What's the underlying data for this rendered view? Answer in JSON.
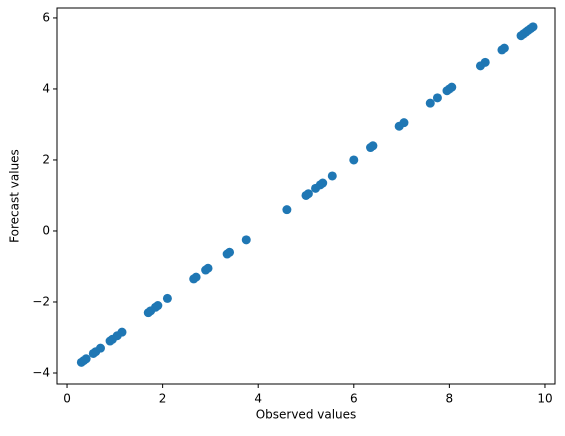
{
  "chart_data": {
    "type": "scatter",
    "x_label": "Observed values",
    "y_label": "Forecast values",
    "series": [
      {
        "color": "#1f77b4",
        "x": [
          0.3,
          0.35,
          0.4,
          0.55,
          0.6,
          0.7,
          0.9,
          0.95,
          1.05,
          1.15,
          1.7,
          1.75,
          1.85,
          1.9,
          2.1,
          2.65,
          2.7,
          2.9,
          2.95,
          3.35,
          3.4,
          3.75,
          4.6,
          5.0,
          5.05,
          5.2,
          5.3,
          5.35,
          5.55,
          6.0,
          6.35,
          6.4,
          6.95,
          7.05,
          7.6,
          7.75,
          7.95,
          8.0,
          8.05,
          8.65,
          8.75,
          9.1,
          9.15,
          9.5,
          9.55,
          9.6,
          9.65,
          9.7,
          9.75
        ],
        "values": [
          -3.7,
          -3.65,
          -3.6,
          -3.45,
          -3.4,
          -3.3,
          -3.1,
          -3.05,
          -2.95,
          -2.85,
          -2.3,
          -2.25,
          -2.15,
          -2.1,
          -1.9,
          -1.35,
          -1.3,
          -1.1,
          -1.05,
          -0.65,
          -0.6,
          -0.25,
          0.6,
          1.0,
          1.05,
          1.2,
          1.3,
          1.35,
          1.55,
          2.0,
          2.35,
          2.4,
          2.95,
          3.05,
          3.6,
          3.75,
          3.95,
          4.0,
          4.05,
          4.65,
          4.75,
          5.1,
          5.15,
          5.5,
          5.55,
          5.6,
          5.65,
          5.7,
          5.75
        ]
      }
    ],
    "xlim": [
      -0.21,
      10.21
    ],
    "xticks": [
      0,
      2,
      4,
      6,
      8,
      10
    ],
    "ylim": [
      -4.31,
      6.28
    ],
    "yticks": [
      {
        "value": -4,
        "label": "−4"
      },
      {
        "value": -2,
        "label": "−2"
      },
      0,
      2,
      4,
      6
    ],
    "grid": false
  }
}
